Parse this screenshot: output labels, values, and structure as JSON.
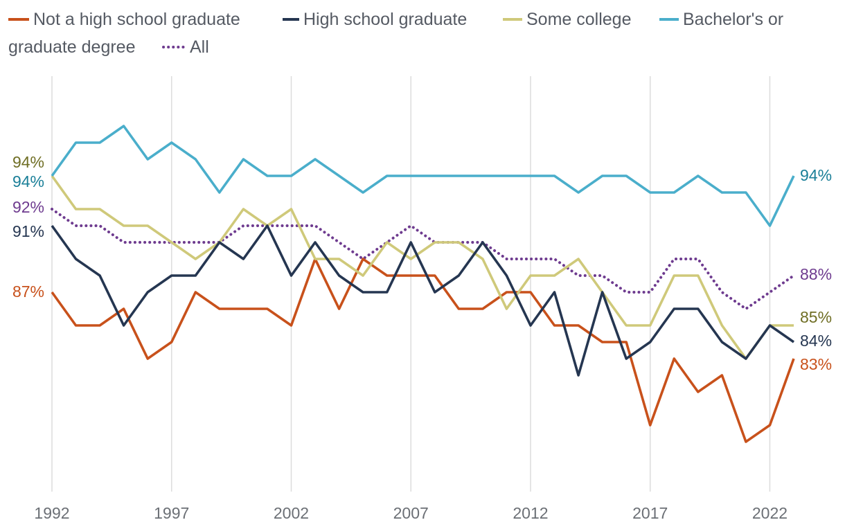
{
  "chart_data": {
    "type": "line",
    "title": "",
    "xlabel": "",
    "ylabel": "",
    "x": [
      1992,
      1993,
      1994,
      1995,
      1996,
      1997,
      1998,
      1999,
      2000,
      2001,
      2002,
      2003,
      2004,
      2005,
      2006,
      2007,
      2008,
      2009,
      2010,
      2011,
      2012,
      2013,
      2014,
      2015,
      2016,
      2017,
      2018,
      2019,
      2020,
      2021,
      2022,
      2023
    ],
    "xticks": [
      1992,
      1997,
      2002,
      2007,
      2012,
      2017,
      2022
    ],
    "xtick_labels": [
      "1992",
      "1997",
      "2002",
      "2007",
      "2012",
      "2017",
      "2022"
    ],
    "ylim": [
      75,
      98
    ],
    "grid": "vertical",
    "legend_position": "top",
    "series": [
      {
        "name": "Not a high school graduate",
        "color": "#c8511b",
        "style": "solid",
        "values": [
          87,
          85,
          85,
          86,
          83,
          84,
          87,
          86,
          86,
          86,
          85,
          89,
          86,
          89,
          88,
          88,
          88,
          86,
          86,
          87,
          87,
          85,
          85,
          84,
          84,
          79,
          83,
          81,
          82,
          78,
          79,
          83
        ],
        "start_label": "87%",
        "end_label": "83%",
        "label_color": "#c8511b"
      },
      {
        "name": "High school graduate",
        "color": "#253651",
        "style": "solid",
        "values": [
          91,
          89,
          88,
          85,
          87,
          88,
          88,
          90,
          89,
          91,
          88,
          90,
          88,
          87,
          87,
          90,
          87,
          88,
          90,
          88,
          85,
          87,
          82,
          87,
          83,
          84,
          86,
          86,
          84,
          83,
          85,
          84
        ],
        "start_label": "91%",
        "end_label": "84%",
        "label_color": "#253651"
      },
      {
        "name": "Some college",
        "color": "#cfc97a",
        "style": "solid",
        "values": [
          94,
          92,
          92,
          91,
          91,
          90,
          89,
          90,
          92,
          91,
          92,
          89,
          89,
          88,
          90,
          89,
          90,
          90,
          89,
          86,
          88,
          88,
          89,
          87,
          85,
          85,
          88,
          88,
          85,
          83,
          85,
          85
        ],
        "start_label": "94%",
        "end_label": "85%",
        "label_color": "#6f6e24"
      },
      {
        "name": "Bachelor's or graduate degree",
        "color": "#4aaecb",
        "style": "solid",
        "values": [
          94,
          96,
          96,
          97,
          95,
          96,
          95,
          93,
          95,
          94,
          94,
          95,
          94,
          93,
          94,
          94,
          94,
          94,
          94,
          94,
          94,
          94,
          93,
          94,
          94,
          93,
          93,
          94,
          93,
          93,
          91,
          94
        ],
        "start_label": "94%",
        "end_label": "94%",
        "label_color": "#1a7f98"
      },
      {
        "name": "All",
        "color": "#6e3b8f",
        "style": "dotted",
        "values": [
          92,
          91,
          91,
          90,
          90,
          90,
          90,
          90,
          91,
          91,
          91,
          91,
          90,
          89,
          90,
          91,
          90,
          90,
          90,
          89,
          89,
          89,
          88,
          88,
          87,
          87,
          89,
          89,
          87,
          86,
          87,
          88
        ],
        "start_label": "92%",
        "end_label": "88%",
        "label_color": "#6e3b8f"
      }
    ]
  }
}
